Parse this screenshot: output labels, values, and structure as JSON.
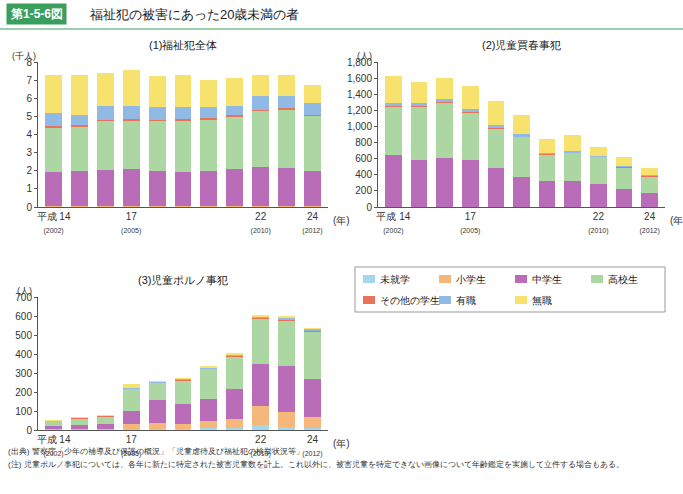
{
  "header": {
    "label": "第1-5-6図",
    "title": "福祉犯の被害にあった20歳未満の者"
  },
  "notes": [
    "(出典) 警察庁「少年の補導及び保護の概況」「児童虐待及び福祉犯の検挙状況等」",
    "(注) 児童ポルノ事犯については、各年に新たに特定された被害児童数を計上。これ以外に、被害児童を特定できない画像について年齢鑑定を実施して立件する場合もある。"
  ],
  "chart_data": [
    {
      "type": "bar",
      "title": "(1)福祉犯全体",
      "stacked": true,
      "grid": false,
      "ylabel": "(千人)",
      "xlabel": "(年)",
      "categories": [
        "平成 14\n(2002)",
        null,
        null,
        "17\n(2005)",
        null,
        null,
        null,
        null,
        "22\n(2010)",
        null,
        "24\n(2012)"
      ],
      "ylim": [
        0,
        8
      ],
      "yticks": [
        0,
        1,
        2,
        3,
        4,
        5,
        6,
        7,
        8
      ],
      "series": [
        {
          "name": "未就学",
          "color": "#a6d6ee",
          "values": [
            0.02,
            0.02,
            0.02,
            0.02,
            0.02,
            0.02,
            0.02,
            0.02,
            0.02,
            0.02,
            0.02
          ]
        },
        {
          "name": "小学生",
          "color": "#f5b77a",
          "values": [
            0.05,
            0.05,
            0.05,
            0.05,
            0.05,
            0.05,
            0.05,
            0.05,
            0.05,
            0.05,
            0.05
          ]
        },
        {
          "name": "中学生",
          "color": "#b96db9",
          "values": [
            1.85,
            1.9,
            1.95,
            2.05,
            1.9,
            1.85,
            1.9,
            2.0,
            2.15,
            2.1,
            1.9
          ]
        },
        {
          "name": "高校生",
          "color": "#acd7a3",
          "values": [
            2.45,
            2.45,
            2.7,
            2.65,
            2.75,
            2.85,
            2.85,
            2.9,
            3.05,
            3.2,
            3.05
          ]
        },
        {
          "name": "その他の学生",
          "color": "#e8735a",
          "values": [
            0.12,
            0.1,
            0.1,
            0.1,
            0.08,
            0.08,
            0.08,
            0.08,
            0.08,
            0.08,
            0.07
          ]
        },
        {
          "name": "有職",
          "color": "#90b9e6",
          "values": [
            0.7,
            0.55,
            0.75,
            0.7,
            0.7,
            0.65,
            0.6,
            0.55,
            0.75,
            0.65,
            0.65
          ]
        },
        {
          "name": "無職",
          "color": "#f8e26e",
          "values": [
            2.1,
            2.2,
            1.8,
            2.0,
            1.75,
            1.8,
            1.5,
            1.5,
            1.2,
            1.2,
            1.0
          ]
        }
      ]
    },
    {
      "type": "bar",
      "title": "(2)児童買春事犯",
      "stacked": true,
      "grid": false,
      "ylabel": "(人)",
      "xlabel": "(年)",
      "categories": [
        "平成 14\n(2002)",
        null,
        null,
        "17\n(2005)",
        null,
        null,
        null,
        null,
        "22\n(2010)",
        null,
        "24\n(2012)"
      ],
      "ylim": [
        0,
        1800
      ],
      "yticks": [
        0,
        200,
        400,
        600,
        800,
        {
          "value": 1000,
          "label": "1,000"
        },
        {
          "value": 1200,
          "label": "1,200"
        },
        {
          "value": 1400,
          "label": "1,400"
        },
        {
          "value": 1600,
          "label": "1,600"
        },
        {
          "value": 1800,
          "label": "1,800"
        }
      ],
      "series": [
        {
          "name": "未就学",
          "color": "#a6d6ee",
          "values": [
            0,
            0,
            0,
            0,
            0,
            0,
            0,
            0,
            0,
            0,
            0
          ]
        },
        {
          "name": "小学生",
          "color": "#f5b77a",
          "values": [
            5,
            5,
            5,
            5,
            5,
            5,
            5,
            5,
            5,
            5,
            5
          ]
        },
        {
          "name": "中学生",
          "color": "#b96db9",
          "values": [
            640,
            580,
            600,
            580,
            480,
            370,
            320,
            320,
            280,
            220,
            170
          ]
        },
        {
          "name": "高校生",
          "color": "#acd7a3",
          "values": [
            600,
            660,
            690,
            580,
            480,
            490,
            320,
            340,
            330,
            260,
            200
          ]
        },
        {
          "name": "その他の学生",
          "color": "#e8735a",
          "values": [
            10,
            10,
            10,
            10,
            10,
            10,
            10,
            10,
            10,
            10,
            10
          ]
        },
        {
          "name": "有職",
          "color": "#90b9e6",
          "values": [
            40,
            30,
            30,
            40,
            40,
            30,
            20,
            20,
            10,
            10,
            10
          ]
        },
        {
          "name": "無職",
          "color": "#f8e26e",
          "values": [
            335,
            265,
            265,
            285,
            305,
            235,
            175,
            195,
            105,
            115,
            85
          ]
        }
      ]
    },
    {
      "type": "bar",
      "title": "(3)児童ポルノ事犯",
      "stacked": true,
      "grid": false,
      "ylabel": "(人)",
      "xlabel": "(年)",
      "categories": [
        "平成 14\n(2002)",
        null,
        null,
        "17\n(2005)",
        null,
        null,
        null,
        null,
        "22\n(2010)",
        null,
        "24\n(2012)"
      ],
      "ylim": [
        0,
        700
      ],
      "yticks": [
        0,
        100,
        200,
        300,
        400,
        500,
        600,
        700
      ],
      "series": [
        {
          "name": "未就学",
          "color": "#a6d6ee",
          "values": [
            1,
            1,
            1,
            5,
            5,
            5,
            8,
            10,
            25,
            15,
            10
          ]
        },
        {
          "name": "小学生",
          "color": "#f5b77a",
          "values": [
            5,
            5,
            5,
            25,
            30,
            25,
            40,
            50,
            100,
            80,
            60
          ]
        },
        {
          "name": "中学生",
          "color": "#b96db9",
          "values": [
            15,
            20,
            25,
            70,
            125,
            105,
            115,
            155,
            225,
            240,
            200
          ]
        },
        {
          "name": "高校生",
          "color": "#acd7a3",
          "values": [
            24,
            34,
            39,
            115,
            85,
            125,
            157,
            170,
            235,
            240,
            245
          ]
        },
        {
          "name": "その他の学生",
          "color": "#e8735a",
          "values": [
            2,
            2,
            2,
            3,
            3,
            3,
            3,
            3,
            5,
            5,
            5
          ]
        },
        {
          "name": "有職",
          "color": "#90b9e6",
          "values": [
            3,
            3,
            3,
            5,
            5,
            5,
            5,
            5,
            5,
            10,
            10
          ]
        },
        {
          "name": "無職",
          "color": "#f8e26e",
          "values": [
            5,
            5,
            5,
            17,
            5,
            7,
            7,
            12,
            10,
            10,
            5
          ]
        }
      ]
    }
  ]
}
